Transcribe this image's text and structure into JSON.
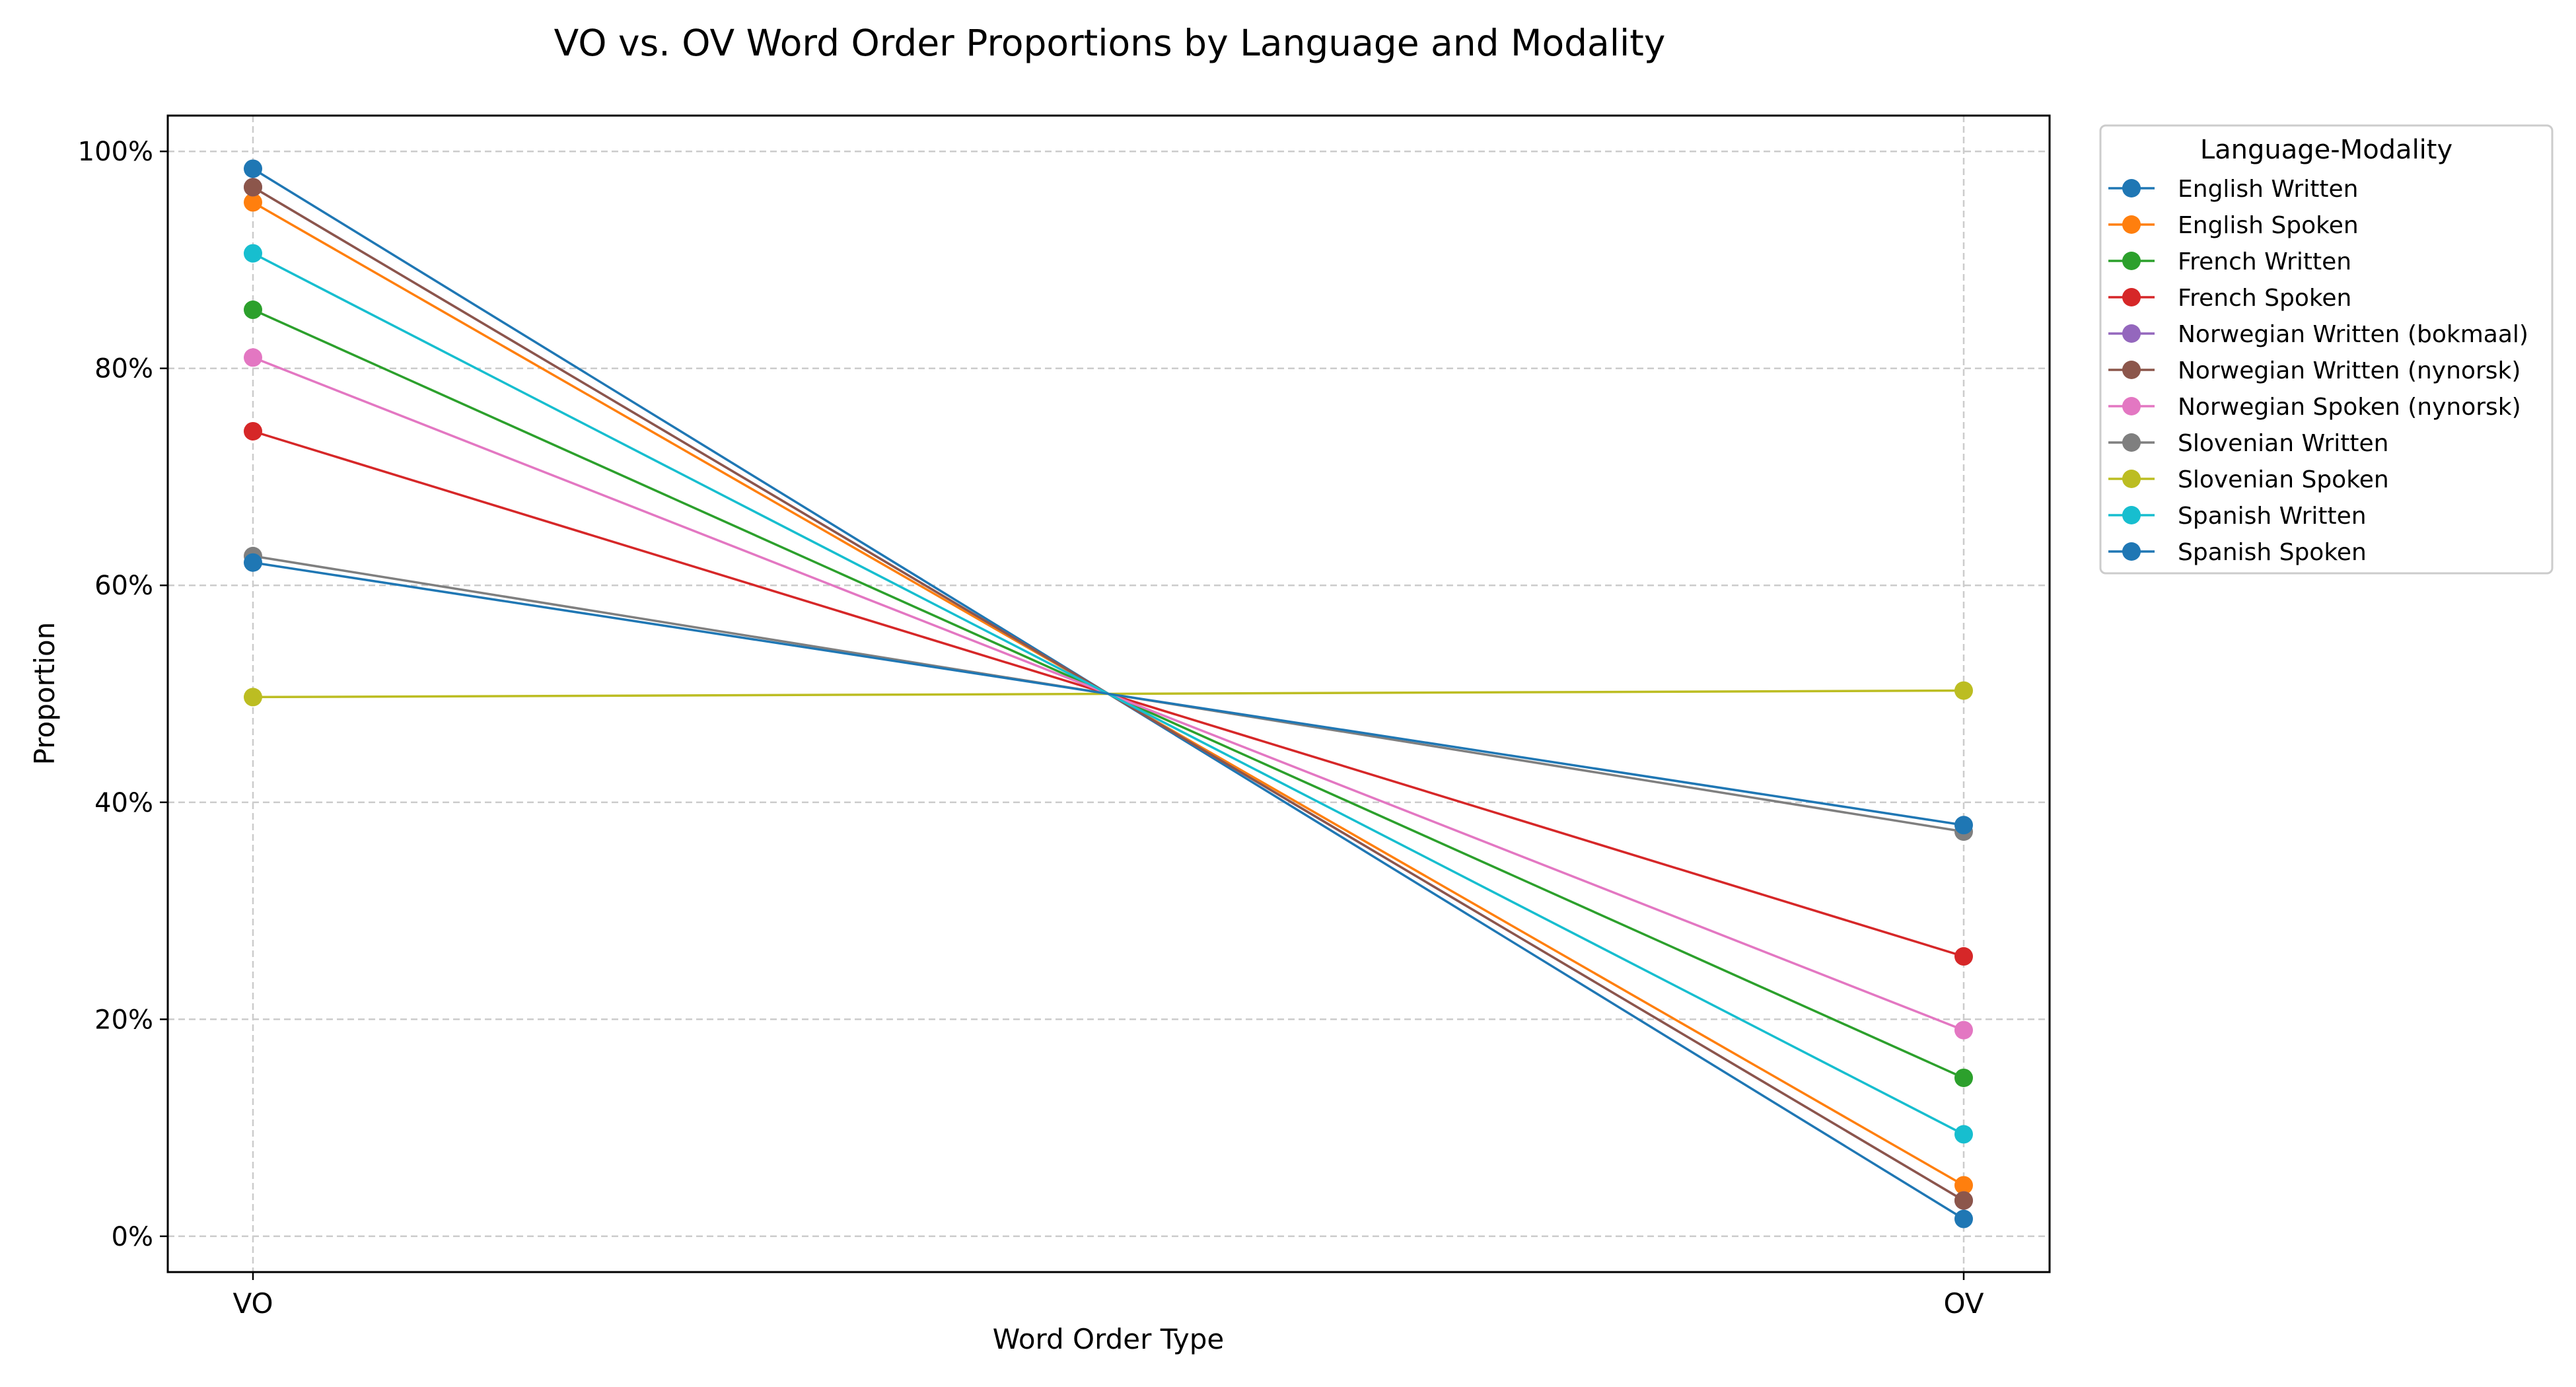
{
  "chart_data": {
    "type": "line",
    "title": "VO vs. OV Word Order Proportions by Language and Modality",
    "xlabel": "Word Order Type",
    "ylabel": "Proportion",
    "categories": [
      "VO",
      "OV"
    ],
    "ylim": [
      -0.033,
      1.033
    ],
    "yticks": [
      0,
      0.2,
      0.4,
      0.6,
      0.8,
      1.0
    ],
    "ytick_labels": [
      "0%",
      "20%",
      "40%",
      "60%",
      "80%",
      "100%"
    ],
    "grid": true,
    "legend": {
      "title": "Language-Modality",
      "placement": "outside-top-right"
    },
    "series": [
      {
        "name": "English Written",
        "color": "#1f77b4",
        "values": [
          0.984,
          0.016
        ]
      },
      {
        "name": "English Spoken",
        "color": "#ff7f0e",
        "values": [
          0.953,
          0.047
        ]
      },
      {
        "name": "French Written",
        "color": "#2ca02c",
        "values": [
          0.854,
          0.146
        ]
      },
      {
        "name": "French Spoken",
        "color": "#d62728",
        "values": [
          0.742,
          0.258
        ]
      },
      {
        "name": "Norwegian Written (bokmaal)",
        "color": "#9467bd",
        "values": [
          0.967,
          0.033
        ]
      },
      {
        "name": "Norwegian Written (nynorsk)",
        "color": "#8c564b",
        "values": [
          0.967,
          0.033
        ]
      },
      {
        "name": "Norwegian Spoken (nynorsk)",
        "color": "#e377c2",
        "values": [
          0.81,
          0.19
        ]
      },
      {
        "name": "Slovenian Written",
        "color": "#7f7f7f",
        "values": [
          0.627,
          0.373
        ]
      },
      {
        "name": "Slovenian Spoken",
        "color": "#bcbd22",
        "values": [
          0.497,
          0.503
        ]
      },
      {
        "name": "Spanish Written",
        "color": "#17becf",
        "values": [
          0.906,
          0.094
        ]
      },
      {
        "name": "Spanish Spoken",
        "color": "#1f77b4",
        "values": [
          0.621,
          0.379
        ]
      }
    ]
  }
}
